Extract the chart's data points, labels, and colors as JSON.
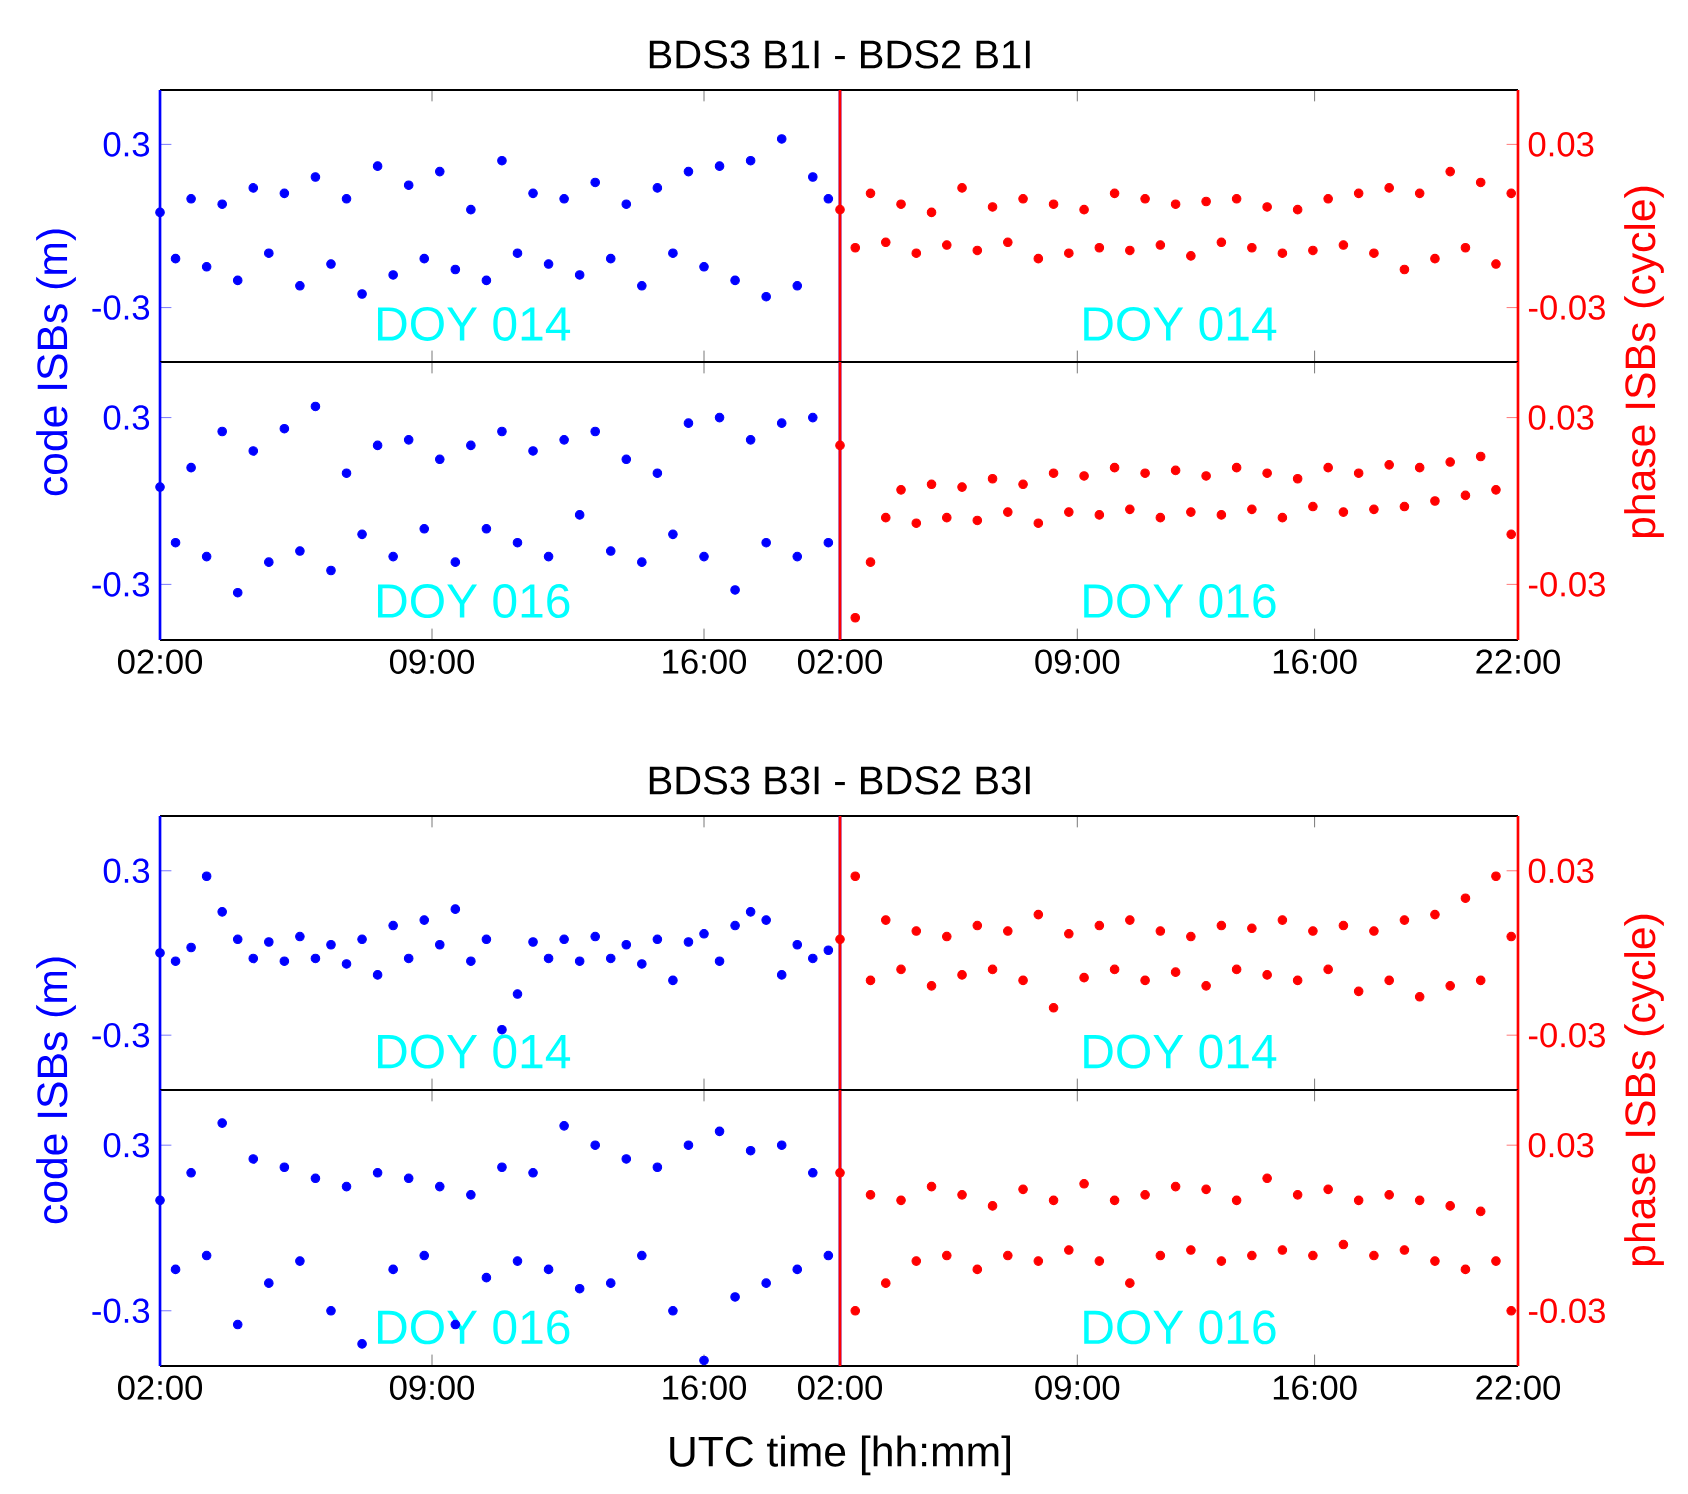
{
  "chart_data": [
    {
      "type": "scatter",
      "title": "BDS3 B1I - BDS2 B1I",
      "ylabel": "code ISBs (m)",
      "marker": "circle",
      "tick_labels": "y",
      "annotations": [
        "DOY 014"
      ],
      "xlim": [
        2,
        19.5
      ],
      "ylim": [
        -0.5,
        0.5
      ],
      "xticks": [
        {
          "value": 2,
          "label": null
        },
        {
          "value": 9,
          "label": null
        },
        {
          "value": 16,
          "label": null
        }
      ],
      "yticks": [
        -0.3,
        0.3
      ],
      "x": [
        2,
        2.4,
        2.8,
        3.2,
        3.6,
        4,
        4.4,
        4.8,
        5.2,
        5.6,
        6,
        6.4,
        6.8,
        7.2,
        7.6,
        8,
        8.4,
        8.8,
        9.2,
        9.6,
        10,
        10.4,
        10.8,
        11.2,
        11.6,
        12,
        12.4,
        12.8,
        13.2,
        13.6,
        14,
        14.4,
        14.8,
        15.2,
        15.6,
        16,
        16.4,
        16.8,
        17.2,
        17.6,
        18,
        18.4,
        18.8,
        19.2
      ],
      "series": [
        {
          "color": "#0000ff",
          "values": [
            0.05,
            -0.12,
            0.1,
            -0.15,
            0.08,
            -0.2,
            0.14,
            -0.1,
            0.12,
            -0.22,
            0.18,
            -0.14,
            0.1,
            -0.25,
            0.22,
            -0.18,
            0.15,
            -0.12,
            0.2,
            -0.16,
            0.06,
            -0.2,
            0.24,
            -0.1,
            0.12,
            -0.14,
            0.1,
            -0.18,
            0.16,
            -0.12,
            0.08,
            -0.22,
            0.14,
            -0.1,
            0.2,
            -0.15,
            0.22,
            -0.2,
            0.24,
            -0.26,
            0.32,
            -0.22,
            0.18,
            0.1
          ]
        }
      ]
    },
    {
      "type": "scatter",
      "ylabel": "phase ISBs (cycle)",
      "marker": "circle",
      "tick_labels": "y",
      "annotations": [
        "DOY 014"
      ],
      "xlim": [
        2,
        22
      ],
      "ylim": [
        -0.05,
        0.05
      ],
      "xticks": [
        {
          "value": 2,
          "label": null
        },
        {
          "value": 9,
          "label": null
        },
        {
          "value": 16,
          "label": null
        },
        {
          "value": 22,
          "label": null
        }
      ],
      "yticks": [
        -0.03,
        0.03
      ],
      "x": [
        2,
        2.45,
        2.9,
        3.35,
        3.8,
        4.25,
        4.7,
        5.15,
        5.6,
        6.05,
        6.5,
        6.95,
        7.4,
        7.85,
        8.3,
        8.75,
        9.2,
        9.65,
        10.1,
        10.55,
        11,
        11.45,
        11.9,
        12.35,
        12.8,
        13.25,
        13.7,
        14.15,
        14.6,
        15.05,
        15.5,
        15.95,
        16.4,
        16.85,
        17.3,
        17.75,
        18.2,
        18.65,
        19.1,
        19.55,
        20,
        20.45,
        20.9,
        21.35,
        21.8
      ],
      "series": [
        {
          "color": "#ff0000",
          "values": [
            0.006,
            -0.008,
            0.012,
            -0.006,
            0.008,
            -0.01,
            0.005,
            -0.007,
            0.014,
            -0.009,
            0.007,
            -0.006,
            0.01,
            -0.012,
            0.008,
            -0.01,
            0.006,
            -0.008,
            0.012,
            -0.009,
            0.01,
            -0.007,
            0.008,
            -0.011,
            0.009,
            -0.006,
            0.01,
            -0.008,
            0.007,
            -0.01,
            0.006,
            -0.009,
            0.01,
            -0.007,
            0.012,
            -0.01,
            0.014,
            -0.016,
            0.012,
            -0.012,
            0.02,
            -0.008,
            0.016,
            -0.014,
            0.012
          ]
        }
      ]
    },
    {
      "type": "scatter",
      "marker": "circle",
      "annotations": [
        "DOY 016"
      ],
      "xlim": [
        2,
        19.5
      ],
      "ylim": [
        -0.5,
        0.5
      ],
      "xticks": [
        {
          "value": 2,
          "label": "02:00"
        },
        {
          "value": 9,
          "label": "09:00"
        },
        {
          "value": 16,
          "label": "16:00"
        }
      ],
      "yticks": [
        -0.3,
        0.3
      ],
      "x": [
        2,
        2.4,
        2.8,
        3.2,
        3.6,
        4,
        4.4,
        4.8,
        5.2,
        5.6,
        6,
        6.4,
        6.8,
        7.2,
        7.6,
        8,
        8.4,
        8.8,
        9.2,
        9.6,
        10,
        10.4,
        10.8,
        11.2,
        11.6,
        12,
        12.4,
        12.8,
        13.2,
        13.6,
        14,
        14.4,
        14.8,
        15.2,
        15.6,
        16,
        16.4,
        16.8,
        17.2,
        17.6,
        18,
        18.4,
        18.8,
        19.2
      ],
      "series": [
        {
          "color": "#0000ff",
          "values": [
            0.05,
            -0.15,
            0.12,
            -0.2,
            0.25,
            -0.33,
            0.18,
            -0.22,
            0.26,
            -0.18,
            0.34,
            -0.25,
            0.1,
            -0.12,
            0.2,
            -0.2,
            0.22,
            -0.1,
            0.15,
            -0.22,
            0.2,
            -0.1,
            0.25,
            -0.15,
            0.18,
            -0.2,
            0.22,
            -0.05,
            0.25,
            -0.18,
            0.15,
            -0.22,
            0.1,
            -0.12,
            0.28,
            -0.2,
            0.3,
            -0.32,
            0.22,
            -0.15,
            0.28,
            -0.2,
            0.3,
            -0.15
          ]
        }
      ]
    },
    {
      "type": "scatter",
      "marker": "circle",
      "annotations": [
        "DOY 016"
      ],
      "xlim": [
        2,
        22
      ],
      "ylim": [
        -0.05,
        0.05
      ],
      "xticks": [
        {
          "value": 2,
          "label": "02:00"
        },
        {
          "value": 9,
          "label": "09:00"
        },
        {
          "value": 16,
          "label": "16:00"
        },
        {
          "value": 22,
          "label": "22:00"
        }
      ],
      "yticks": [
        -0.03,
        0.03
      ],
      "x": [
        2,
        2.45,
        2.9,
        3.35,
        3.8,
        4.25,
        4.7,
        5.15,
        5.6,
        6.05,
        6.5,
        6.95,
        7.4,
        7.85,
        8.3,
        8.75,
        9.2,
        9.65,
        10.1,
        10.55,
        11,
        11.45,
        11.9,
        12.35,
        12.8,
        13.25,
        13.7,
        14.15,
        14.6,
        15.05,
        15.5,
        15.95,
        16.4,
        16.85,
        17.3,
        17.75,
        18.2,
        18.65,
        19.1,
        19.55,
        20,
        20.45,
        20.9,
        21.35,
        21.8
      ],
      "series": [
        {
          "color": "#ff0000",
          "values": [
            0.02,
            -0.042,
            -0.022,
            -0.006,
            0.004,
            -0.008,
            0.006,
            -0.006,
            0.005,
            -0.007,
            0.008,
            -0.004,
            0.006,
            -0.008,
            0.01,
            -0.004,
            0.009,
            -0.005,
            0.012,
            -0.003,
            0.01,
            -0.006,
            0.011,
            -0.004,
            0.009,
            -0.005,
            0.012,
            -0.003,
            0.01,
            -0.006,
            0.008,
            -0.002,
            0.012,
            -0.004,
            0.01,
            -0.003,
            0.013,
            -0.002,
            0.012,
            0.0,
            0.014,
            0.002,
            0.016,
            0.004,
            -0.012
          ]
        }
      ]
    },
    {
      "type": "scatter",
      "title": "BDS3 B3I - BDS2 B3I",
      "ylabel": "code ISBs (m)",
      "marker": "circle",
      "tick_labels": "y",
      "annotations": [
        "DOY 014"
      ],
      "xlim": [
        2,
        19.5
      ],
      "ylim": [
        -0.5,
        0.5
      ],
      "xticks": [
        {
          "value": 2,
          "label": null
        },
        {
          "value": 9,
          "label": null
        },
        {
          "value": 16,
          "label": null
        }
      ],
      "yticks": [
        -0.3,
        0.3
      ],
      "x": [
        2,
        2.4,
        2.8,
        3.2,
        3.6,
        4,
        4.4,
        4.8,
        5.2,
        5.6,
        6,
        6.4,
        6.8,
        7.2,
        7.6,
        8,
        8.4,
        8.8,
        9.2,
        9.6,
        10,
        10.4,
        10.8,
        11.2,
        11.6,
        12,
        12.4,
        12.8,
        13.2,
        13.6,
        14,
        14.4,
        14.8,
        15.2,
        15.6,
        16,
        16.4,
        16.8,
        17.2,
        17.6,
        18,
        18.4,
        18.8,
        19.2
      ],
      "series": [
        {
          "color": "#0000ff",
          "values": [
            0.0,
            -0.03,
            0.02,
            0.28,
            0.15,
            0.05,
            -0.02,
            0.04,
            -0.03,
            0.06,
            -0.02,
            0.03,
            -0.04,
            0.05,
            -0.08,
            0.1,
            -0.02,
            0.12,
            0.03,
            0.16,
            -0.03,
            0.05,
            -0.28,
            -0.15,
            0.04,
            -0.02,
            0.05,
            -0.03,
            0.06,
            -0.02,
            0.03,
            -0.04,
            0.05,
            -0.1,
            0.04,
            0.07,
            -0.03,
            0.1,
            0.15,
            0.12,
            -0.08,
            0.03,
            -0.02,
            0.01
          ]
        }
      ]
    },
    {
      "type": "scatter",
      "ylabel": "phase ISBs (cycle)",
      "marker": "circle",
      "tick_labels": "y",
      "annotations": [
        "DOY 014"
      ],
      "xlim": [
        2,
        22
      ],
      "ylim": [
        -0.05,
        0.05
      ],
      "xticks": [
        {
          "value": 2,
          "label": null
        },
        {
          "value": 9,
          "label": null
        },
        {
          "value": 16,
          "label": null
        },
        {
          "value": 22,
          "label": null
        }
      ],
      "yticks": [
        -0.03,
        0.03
      ],
      "x": [
        2,
        2.45,
        2.9,
        3.35,
        3.8,
        4.25,
        4.7,
        5.15,
        5.6,
        6.05,
        6.5,
        6.95,
        7.4,
        7.85,
        8.3,
        8.75,
        9.2,
        9.65,
        10.1,
        10.55,
        11,
        11.45,
        11.9,
        12.35,
        12.8,
        13.25,
        13.7,
        14.15,
        14.6,
        15.05,
        15.5,
        15.95,
        16.4,
        16.85,
        17.3,
        17.75,
        18.2,
        18.65,
        19.1,
        19.55,
        20,
        20.45,
        20.9,
        21.35,
        21.8
      ],
      "series": [
        {
          "color": "#ff0000",
          "values": [
            0.005,
            0.028,
            -0.01,
            0.012,
            -0.006,
            0.008,
            -0.012,
            0.006,
            -0.008,
            0.01,
            -0.006,
            0.008,
            -0.01,
            0.014,
            -0.02,
            0.007,
            -0.009,
            0.01,
            -0.006,
            0.012,
            -0.01,
            0.008,
            -0.007,
            0.006,
            -0.012,
            0.01,
            -0.006,
            0.009,
            -0.008,
            0.012,
            -0.01,
            0.008,
            -0.006,
            0.01,
            -0.014,
            0.008,
            -0.01,
            0.012,
            -0.016,
            0.014,
            -0.012,
            0.02,
            -0.01,
            0.028,
            0.006
          ]
        }
      ]
    },
    {
      "type": "scatter",
      "xlabel": "UTC time [hh:mm]",
      "marker": "circle",
      "annotations": [
        "DOY 016"
      ],
      "xlim": [
        2,
        19.5
      ],
      "ylim": [
        -0.5,
        0.5
      ],
      "xticks": [
        {
          "value": 2,
          "label": "02:00"
        },
        {
          "value": 9,
          "label": "09:00"
        },
        {
          "value": 16,
          "label": "16:00"
        }
      ],
      "yticks": [
        -0.3,
        0.3
      ],
      "x": [
        2,
        2.4,
        2.8,
        3.2,
        3.6,
        4,
        4.4,
        4.8,
        5.2,
        5.6,
        6,
        6.4,
        6.8,
        7.2,
        7.6,
        8,
        8.4,
        8.8,
        9.2,
        9.6,
        10,
        10.4,
        10.8,
        11.2,
        11.6,
        12,
        12.4,
        12.8,
        13.2,
        13.6,
        14,
        14.4,
        14.8,
        15.2,
        15.6,
        16,
        16.4,
        16.8,
        17.2,
        17.6,
        18,
        18.4,
        18.8,
        19.2
      ],
      "series": [
        {
          "color": "#0000ff",
          "values": [
            0.1,
            -0.15,
            0.2,
            -0.1,
            0.38,
            -0.35,
            0.25,
            -0.2,
            0.22,
            -0.12,
            0.18,
            -0.3,
            0.15,
            -0.42,
            0.2,
            -0.15,
            0.18,
            -0.1,
            0.15,
            -0.35,
            0.12,
            -0.18,
            0.22,
            -0.12,
            0.2,
            -0.15,
            0.37,
            -0.22,
            0.3,
            -0.2,
            0.25,
            -0.1,
            0.22,
            -0.3,
            0.3,
            -0.48,
            0.35,
            -0.25,
            0.28,
            -0.2,
            0.3,
            -0.15,
            0.2,
            -0.1
          ]
        }
      ]
    },
    {
      "type": "scatter",
      "marker": "circle",
      "annotations": [
        "DOY 016"
      ],
      "xlim": [
        2,
        22
      ],
      "ylim": [
        -0.05,
        0.05
      ],
      "xticks": [
        {
          "value": 2,
          "label": "02:00"
        },
        {
          "value": 9,
          "label": "09:00"
        },
        {
          "value": 16,
          "label": "16:00"
        },
        {
          "value": 22,
          "label": "22:00"
        }
      ],
      "yticks": [
        -0.03,
        0.03
      ],
      "x": [
        2,
        2.45,
        2.9,
        3.35,
        3.8,
        4.25,
        4.7,
        5.15,
        5.6,
        6.05,
        6.5,
        6.95,
        7.4,
        7.85,
        8.3,
        8.75,
        9.2,
        9.65,
        10.1,
        10.55,
        11,
        11.45,
        11.9,
        12.35,
        12.8,
        13.25,
        13.7,
        14.15,
        14.6,
        15.05,
        15.5,
        15.95,
        16.4,
        16.85,
        17.3,
        17.75,
        18.2,
        18.65,
        19.1,
        19.55,
        20,
        20.45,
        20.9,
        21.35,
        21.8
      ],
      "series": [
        {
          "color": "#ff0000",
          "values": [
            0.02,
            -0.03,
            0.012,
            -0.02,
            0.01,
            -0.012,
            0.015,
            -0.01,
            0.012,
            -0.015,
            0.008,
            -0.01,
            0.014,
            -0.012,
            0.01,
            -0.008,
            0.016,
            -0.012,
            0.01,
            -0.02,
            0.012,
            -0.01,
            0.015,
            -0.008,
            0.014,
            -0.012,
            0.01,
            -0.01,
            0.018,
            -0.008,
            0.012,
            -0.01,
            0.014,
            -0.006,
            0.01,
            -0.01,
            0.012,
            -0.008,
            0.01,
            -0.012,
            0.008,
            -0.015,
            0.006,
            -0.012,
            -0.03
          ]
        }
      ]
    }
  ]
}
